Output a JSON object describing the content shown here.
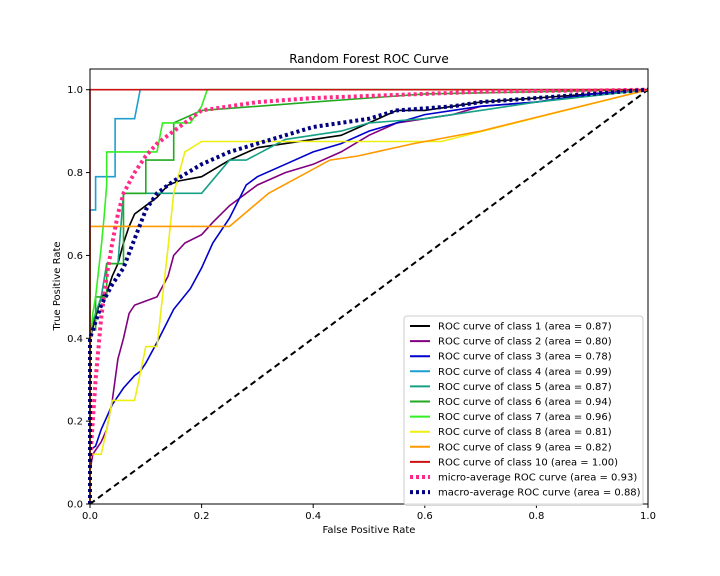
{
  "chart_data": {
    "type": "line",
    "title": "Random Forest ROC Curve",
    "xlabel": "False Positive Rate",
    "ylabel": "True Positive Rate",
    "xlim": [
      0.0,
      1.0
    ],
    "ylim": [
      0.0,
      1.05
    ],
    "x_ticks": [
      "0.0",
      "0.2",
      "0.4",
      "0.6",
      "0.8",
      "1.0"
    ],
    "y_ticks": [
      "0.0",
      "0.2",
      "0.4",
      "0.6",
      "0.8",
      "1.0"
    ],
    "grid": false,
    "legend_position": "lower-right",
    "diagonal": {
      "x": [
        0,
        1
      ],
      "y": [
        0,
        1
      ],
      "color": "#000000",
      "style": "dashed"
    },
    "series": [
      {
        "name": "ROC curve of class 1 (area = 0.87)",
        "color": "#000000",
        "style": "solid",
        "x": [
          0,
          0.0,
          0.01,
          0.02,
          0.03,
          0.04,
          0.05,
          0.06,
          0.07,
          0.08,
          0.1,
          0.12,
          0.14,
          0.16,
          0.2,
          0.25,
          0.3,
          0.35,
          0.4,
          0.45,
          0.5,
          0.55,
          0.6,
          0.65,
          0.7,
          0.8,
          0.9,
          1.0
        ],
        "y": [
          0,
          0.4,
          0.45,
          0.5,
          0.51,
          0.55,
          0.58,
          0.63,
          0.67,
          0.7,
          0.72,
          0.74,
          0.77,
          0.78,
          0.79,
          0.83,
          0.86,
          0.87,
          0.88,
          0.89,
          0.92,
          0.95,
          0.95,
          0.96,
          0.97,
          0.98,
          0.99,
          1.0
        ]
      },
      {
        "name": "ROC curve of class 2 (area = 0.80)",
        "color": "#800080",
        "style": "solid",
        "x": [
          0,
          0.0,
          0.005,
          0.01,
          0.02,
          0.03,
          0.04,
          0.05,
          0.06,
          0.07,
          0.08,
          0.1,
          0.12,
          0.14,
          0.15,
          0.17,
          0.2,
          0.22,
          0.25,
          0.3,
          0.35,
          0.4,
          0.45,
          0.5,
          0.55,
          0.6,
          0.65,
          0.7,
          0.8,
          0.9,
          1.0
        ],
        "y": [
          0,
          0.08,
          0.12,
          0.13,
          0.15,
          0.18,
          0.25,
          0.35,
          0.4,
          0.46,
          0.48,
          0.49,
          0.5,
          0.55,
          0.6,
          0.63,
          0.65,
          0.68,
          0.72,
          0.77,
          0.8,
          0.82,
          0.85,
          0.89,
          0.92,
          0.93,
          0.94,
          0.96,
          0.97,
          0.99,
          1.0
        ]
      },
      {
        "name": "ROC curve of class 3 (area = 0.78)",
        "color": "#0000cc",
        "style": "solid",
        "x": [
          0,
          0.0,
          0.01,
          0.02,
          0.04,
          0.06,
          0.08,
          0.09,
          0.1,
          0.12,
          0.15,
          0.18,
          0.2,
          0.22,
          0.25,
          0.28,
          0.3,
          0.35,
          0.4,
          0.45,
          0.5,
          0.55,
          0.6,
          0.65,
          0.7,
          0.8,
          0.9,
          1.0
        ],
        "y": [
          0,
          0.13,
          0.14,
          0.18,
          0.24,
          0.28,
          0.31,
          0.32,
          0.34,
          0.39,
          0.47,
          0.52,
          0.57,
          0.63,
          0.69,
          0.77,
          0.79,
          0.82,
          0.85,
          0.87,
          0.9,
          0.92,
          0.94,
          0.95,
          0.96,
          0.97,
          0.99,
          1.0
        ]
      },
      {
        "name": "ROC curve of class 4 (area = 0.99)",
        "color": "#1f9fd0",
        "style": "solid",
        "x": [
          0,
          0.0,
          0.01,
          0.01,
          0.045,
          0.045,
          0.08,
          0.09,
          1.0
        ],
        "y": [
          0,
          0.71,
          0.71,
          0.79,
          0.79,
          0.93,
          0.93,
          1.0,
          1.0
        ]
      },
      {
        "name": "ROC curve of class 5 (area = 0.87)",
        "color": "#16a085",
        "style": "solid",
        "x": [
          0,
          0.0,
          0.02,
          0.03,
          0.05,
          0.06,
          0.07,
          0.1,
          0.15,
          0.2,
          0.25,
          0.28,
          0.35,
          0.45,
          0.5,
          0.6,
          0.7,
          0.8,
          1.0
        ],
        "y": [
          0,
          0.42,
          0.5,
          0.58,
          0.58,
          0.75,
          0.75,
          0.75,
          0.75,
          0.75,
          0.83,
          0.83,
          0.88,
          0.9,
          0.92,
          0.93,
          0.95,
          0.97,
          1.0
        ]
      },
      {
        "name": "ROC curve of class 6 (area = 0.94)",
        "color": "#22aa22",
        "style": "solid",
        "x": [
          0,
          0.0,
          0.01,
          0.01,
          0.03,
          0.03,
          0.06,
          0.06,
          0.1,
          0.1,
          0.15,
          0.15,
          0.2,
          0.3,
          0.4,
          0.5,
          0.6,
          1.0
        ],
        "y": [
          0,
          0.42,
          0.42,
          0.5,
          0.5,
          0.58,
          0.58,
          0.75,
          0.75,
          0.83,
          0.83,
          0.92,
          0.95,
          0.96,
          0.97,
          0.98,
          0.99,
          1.0
        ]
      },
      {
        "name": "ROC curve of class 7 (area = 0.96)",
        "color": "#33ee22",
        "style": "solid",
        "x": [
          0,
          0.0,
          0.005,
          0.01,
          0.02,
          0.025,
          0.03,
          0.03,
          0.06,
          0.08,
          0.12,
          0.13,
          0.15,
          0.18,
          0.2,
          0.21,
          1.0
        ],
        "y": [
          0,
          0.38,
          0.46,
          0.5,
          0.62,
          0.69,
          0.77,
          0.85,
          0.85,
          0.85,
          0.85,
          0.92,
          0.92,
          0.92,
          0.96,
          1.0,
          1.0
        ]
      },
      {
        "name": "ROC curve of class 8 (area = 0.81)",
        "color": "#eeee11",
        "style": "solid",
        "x": [
          0,
          0.0,
          0.02,
          0.03,
          0.04,
          0.08,
          0.1,
          0.12,
          0.13,
          0.14,
          0.15,
          0.17,
          0.2,
          0.35,
          0.55,
          0.63,
          1.0
        ],
        "y": [
          0,
          0.12,
          0.12,
          0.18,
          0.25,
          0.25,
          0.38,
          0.38,
          0.5,
          0.62,
          0.75,
          0.85,
          0.875,
          0.875,
          0.875,
          0.875,
          1.0
        ]
      },
      {
        "name": "ROC curve of class 9 (area = 0.82)",
        "color": "#ff9900",
        "style": "solid",
        "x": [
          0,
          0.0,
          0.25,
          0.32,
          0.43,
          0.48,
          0.58,
          0.7,
          0.85,
          1.0
        ],
        "y": [
          0,
          0.67,
          0.67,
          0.75,
          0.83,
          0.84,
          0.87,
          0.9,
          0.95,
          1.0
        ]
      },
      {
        "name": "ROC curve of class 10 (area = 1.00)",
        "color": "#cc1111",
        "style": "solid",
        "x": [
          0,
          0.0,
          1.0
        ],
        "y": [
          0,
          1.0,
          1.0
        ]
      },
      {
        "name": "micro-average ROC curve (area = 0.93)",
        "color": "#ff2a88",
        "style": "dotted",
        "x": [
          0,
          0.0,
          0.01,
          0.02,
          0.03,
          0.04,
          0.05,
          0.06,
          0.08,
          0.1,
          0.12,
          0.15,
          0.18,
          0.2,
          0.25,
          0.3,
          0.4,
          0.5,
          0.6,
          0.7,
          0.8,
          0.9,
          1.0
        ],
        "y": [
          0,
          0.1,
          0.3,
          0.45,
          0.55,
          0.63,
          0.7,
          0.75,
          0.8,
          0.84,
          0.87,
          0.9,
          0.93,
          0.95,
          0.96,
          0.97,
          0.98,
          0.985,
          0.99,
          0.995,
          0.997,
          0.998,
          1.0
        ]
      },
      {
        "name": "macro-average ROC curve (area = 0.88)",
        "color": "#000080",
        "style": "dotted",
        "x": [
          0,
          0.0,
          0.02,
          0.04,
          0.06,
          0.08,
          0.1,
          0.12,
          0.15,
          0.2,
          0.25,
          0.3,
          0.35,
          0.4,
          0.5,
          0.55,
          0.6,
          0.65,
          0.7,
          0.8,
          0.9,
          1.0
        ],
        "y": [
          0,
          0.4,
          0.48,
          0.53,
          0.57,
          0.64,
          0.71,
          0.75,
          0.78,
          0.82,
          0.85,
          0.87,
          0.89,
          0.91,
          0.93,
          0.95,
          0.955,
          0.96,
          0.97,
          0.98,
          0.99,
          1.0
        ]
      }
    ]
  }
}
